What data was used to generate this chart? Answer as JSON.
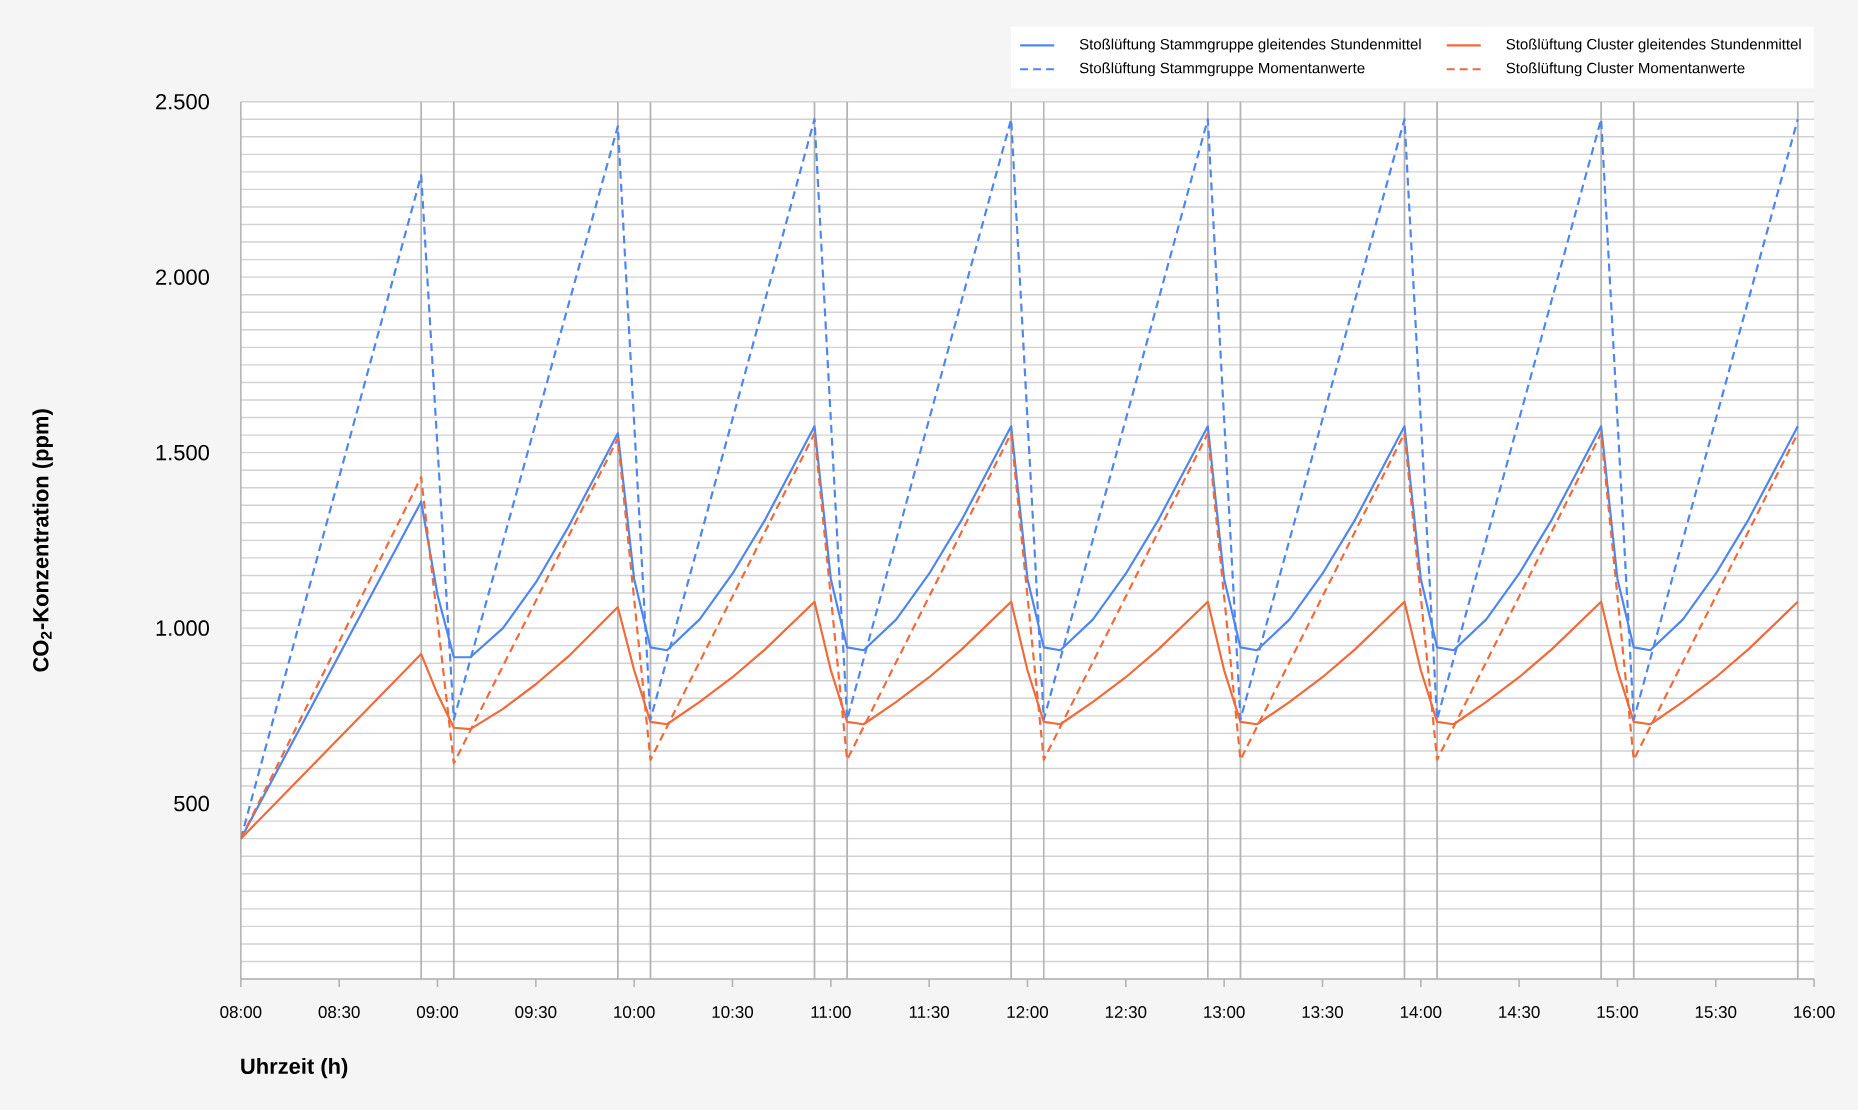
{
  "chart_data": {
    "type": "line",
    "xlabel": "Uhrzeit (h)",
    "ylabel": "CO$_{2}$-Konzentration (ppm)",
    "xlim": [
      8,
      16
    ],
    "ylim": [
      0,
      2500
    ],
    "xticks": [
      {
        "value": 8,
        "label": "08:00"
      },
      {
        "value": 8.5,
        "label": "08:30"
      },
      {
        "value": 9,
        "label": "09:00"
      },
      {
        "value": 9.5,
        "label": "09:30"
      },
      {
        "value": 10,
        "label": "10:00"
      },
      {
        "value": 10.5,
        "label": "10:30"
      },
      {
        "value": 11,
        "label": "11:00"
      },
      {
        "value": 11.5,
        "label": "11:30"
      },
      {
        "value": 12,
        "label": "12:00"
      },
      {
        "value": 12.5,
        "label": "12:30"
      },
      {
        "value": 13,
        "label": "13:00"
      },
      {
        "value": 13.5,
        "label": "13:30"
      },
      {
        "value": 14,
        "label": "14:00"
      },
      {
        "value": 14.5,
        "label": "14:30"
      },
      {
        "value": 15,
        "label": "15:00"
      },
      {
        "value": 15.5,
        "label": "15:30"
      },
      {
        "value": 16,
        "label": "16:00"
      }
    ],
    "yticks": [
      {
        "value": 0,
        "label": null
      },
      {
        "value": 50,
        "label": null
      },
      {
        "value": 100,
        "label": null
      },
      {
        "value": 150,
        "label": null
      },
      {
        "value": 200,
        "label": null
      },
      {
        "value": 250,
        "label": null
      },
      {
        "value": 300,
        "label": null
      },
      {
        "value": 350,
        "label": null
      },
      {
        "value": 400,
        "label": null
      },
      {
        "value": 450,
        "label": null
      },
      500,
      {
        "value": 550,
        "label": null
      },
      {
        "value": 600,
        "label": null
      },
      {
        "value": 650,
        "label": null
      },
      {
        "value": 700,
        "label": null
      },
      {
        "value": 750,
        "label": null
      },
      {
        "value": 800,
        "label": null
      },
      {
        "value": 850,
        "label": null
      },
      {
        "value": 900,
        "label": null
      },
      {
        "value": 950,
        "label": null
      },
      {
        "value": 1000,
        "label": "1.000"
      },
      {
        "value": 1050,
        "label": null
      },
      {
        "value": 1100,
        "label": null
      },
      {
        "value": 1150,
        "label": null
      },
      {
        "value": 1200,
        "label": null
      },
      {
        "value": 1250,
        "label": null
      },
      {
        "value": 1300,
        "label": null
      },
      {
        "value": 1350,
        "label": null
      },
      {
        "value": 1400,
        "label": null
      },
      {
        "value": 1450,
        "label": null
      },
      {
        "value": 1500,
        "label": "1.500"
      },
      {
        "value": 1550,
        "label": null
      },
      {
        "value": 1600,
        "label": null
      },
      {
        "value": 1650,
        "label": null
      },
      {
        "value": 1700,
        "label": null
      },
      {
        "value": 1750,
        "label": null
      },
      {
        "value": 1800,
        "label": null
      },
      {
        "value": 1850,
        "label": null
      },
      {
        "value": 1900,
        "label": null
      },
      {
        "value": 1950,
        "label": null
      },
      {
        "value": 2000,
        "label": "2.000"
      },
      {
        "value": 2050,
        "label": null
      },
      {
        "value": 2100,
        "label": null
      },
      {
        "value": 2150,
        "label": null
      },
      {
        "value": 2200,
        "label": null
      },
      {
        "value": 2250,
        "label": null
      },
      {
        "value": 2300,
        "label": null
      },
      {
        "value": 2350,
        "label": null
      },
      {
        "value": 2400,
        "label": null
      },
      {
        "value": 2450,
        "label": null
      },
      {
        "value": 2500,
        "label": "2.500"
      }
    ],
    "grid": "y",
    "legend": "top right",
    "ref_lines": [
      {
        "axis": "x",
        "value": 8.917,
        "color": "#b4b4b4"
      },
      {
        "axis": "x",
        "value": 9.083,
        "color": "#b4b4b4"
      },
      {
        "axis": "x",
        "value": 9.917,
        "color": "#b4b4b4"
      },
      {
        "axis": "x",
        "value": 10.083,
        "color": "#b4b4b4"
      },
      {
        "axis": "x",
        "value": 10.917,
        "color": "#b4b4b4"
      },
      {
        "axis": "x",
        "value": 11.083,
        "color": "#b4b4b4"
      },
      {
        "axis": "x",
        "value": 11.917,
        "color": "#b4b4b4"
      },
      {
        "axis": "x",
        "value": 12.083,
        "color": "#b4b4b4"
      },
      {
        "axis": "x",
        "value": 12.917,
        "color": "#b4b4b4"
      },
      {
        "axis": "x",
        "value": 13.083,
        "color": "#b4b4b4"
      },
      {
        "axis": "x",
        "value": 13.917,
        "color": "#b4b4b4"
      },
      {
        "axis": "x",
        "value": 14.083,
        "color": "#b4b4b4"
      },
      {
        "axis": "x",
        "value": 14.917,
        "color": "#b4b4b4"
      },
      {
        "axis": "x",
        "value": 15.083,
        "color": "#b4b4b4"
      },
      {
        "axis": "x",
        "value": 15.917,
        "color": "#b4b4b4"
      }
    ],
    "series": [
      {
        "name": "Stoßlüftung Stammgruppe gleitendes Stundenmittel",
        "color": "#4f86ee",
        "line_style": "solid",
        "x": [
          8,
          8.917,
          9,
          9.083,
          9.167,
          9.333,
          9.5,
          9.667,
          9.917,
          10,
          10.083,
          10.167,
          10.333,
          10.5,
          10.667,
          10.917,
          11,
          11.083,
          11.167,
          11.333,
          11.5,
          11.667,
          11.917,
          12,
          12.083,
          12.167,
          12.333,
          12.5,
          12.667,
          12.917,
          13,
          13.083,
          13.167,
          13.333,
          13.5,
          13.667,
          13.917,
          14,
          14.083,
          14.167,
          14.333,
          14.5,
          14.667,
          14.917,
          15,
          15.083,
          15.167,
          15.333,
          15.5,
          15.667,
          15.917
        ],
        "values": [
          400,
          1360,
          1095,
          917,
          917,
          1000,
          1130,
          1290,
          1555,
          1140,
          945,
          937,
          1025,
          1155,
          1310,
          1575,
          1140,
          945,
          937,
          1025,
          1155,
          1310,
          1575,
          1140,
          945,
          937,
          1025,
          1155,
          1310,
          1575,
          1140,
          945,
          937,
          1025,
          1155,
          1310,
          1575,
          1140,
          945,
          937,
          1025,
          1155,
          1310,
          1575,
          1140,
          945,
          937,
          1025,
          1155,
          1310,
          1575
        ]
      },
      {
        "name": "Stoßlüftung Cluster gleitendes Stundenmittel",
        "color": "#f06a3a",
        "line_style": "solid",
        "x": [
          8,
          8.917,
          9,
          9.083,
          9.167,
          9.333,
          9.5,
          9.667,
          9.917,
          10,
          10.083,
          10.167,
          10.333,
          10.5,
          10.667,
          10.917,
          11,
          11.083,
          11.167,
          11.333,
          11.5,
          11.667,
          11.917,
          12,
          12.083,
          12.167,
          12.333,
          12.5,
          12.667,
          12.917,
          13,
          13.083,
          13.167,
          13.333,
          13.5,
          13.667,
          13.917,
          14,
          14.083,
          14.167,
          14.333,
          14.5,
          14.667,
          14.917,
          15,
          15.083,
          15.167,
          15.333,
          15.5,
          15.667,
          15.917
        ],
        "values": [
          400,
          926,
          812,
          716,
          712,
          770,
          840,
          920,
          1060,
          880,
          733,
          726,
          790,
          860,
          940,
          1075,
          880,
          733,
          726,
          790,
          860,
          940,
          1075,
          880,
          733,
          726,
          790,
          860,
          940,
          1075,
          880,
          733,
          726,
          790,
          860,
          940,
          1075,
          880,
          733,
          726,
          790,
          860,
          940,
          1075,
          880,
          733,
          726,
          790,
          860,
          940,
          1075
        ]
      },
      {
        "name": "Stoßlüftung Stammgruppe Momentanwerte",
        "color": "#4f86ee",
        "line_style": "dashed",
        "x": [
          8,
          8.917,
          9.083,
          9.917,
          10.083,
          10.917,
          11.083,
          11.917,
          12.083,
          12.917,
          13.083,
          13.917,
          14.083,
          14.917,
          15.083,
          15.917
        ],
        "values": [
          400,
          2290,
          740,
          2430,
          740,
          2450,
          740,
          2450,
          740,
          2450,
          740,
          2450,
          740,
          2450,
          740,
          2450
        ]
      },
      {
        "name": "Stoßlüftung Cluster Momentanwerte",
        "color": "#f06a3a",
        "line_style": "dashed",
        "x": [
          8,
          8.917,
          9.083,
          9.917,
          10.083,
          10.917,
          11.083,
          11.917,
          12.083,
          12.917,
          13.083,
          13.917,
          14.083,
          14.917,
          15.083,
          15.917
        ],
        "values": [
          400,
          1430,
          615,
          1540,
          625,
          1555,
          625,
          1555,
          625,
          1555,
          625,
          1555,
          625,
          1555,
          625,
          1555
        ]
      }
    ]
  }
}
